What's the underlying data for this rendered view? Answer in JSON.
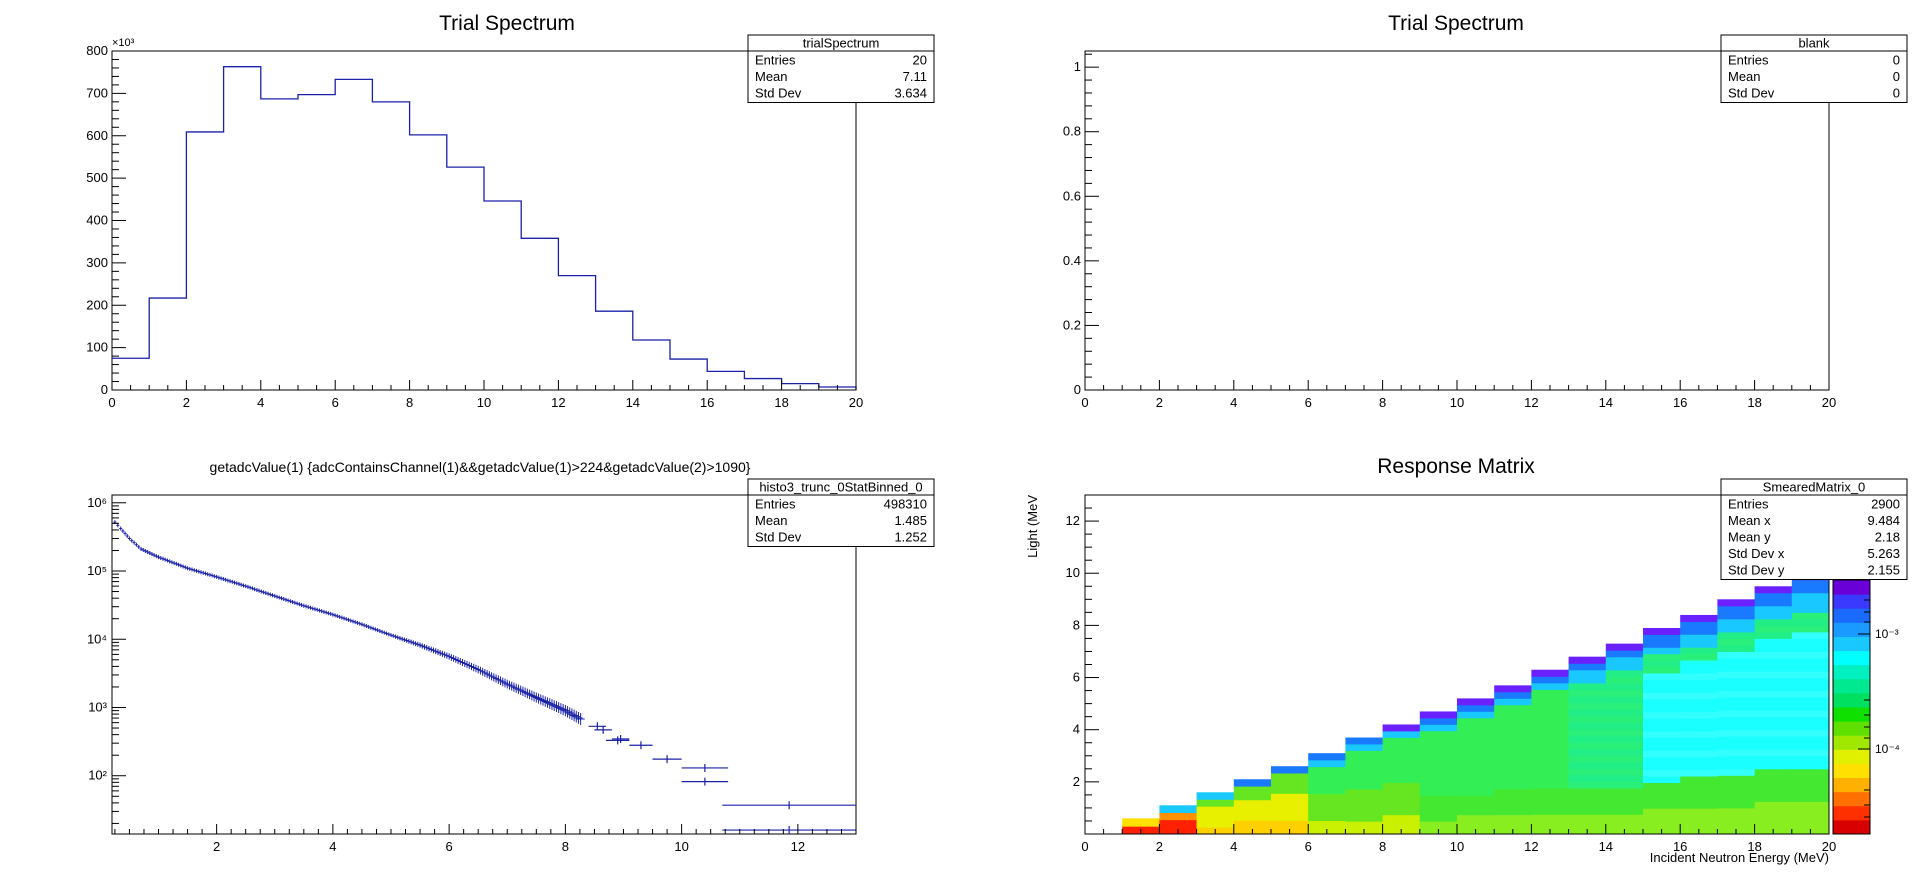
{
  "chart_data": [
    {
      "type": "bar",
      "title": "Trial Spectrum",
      "stats": {
        "name": "trialSpectrum",
        "rows": [
          [
            "Entries",
            "20"
          ],
          [
            "Mean",
            "7.11"
          ],
          [
            "Std Dev",
            "3.634"
          ]
        ]
      },
      "xlim": [
        0,
        20
      ],
      "ylim": [
        0,
        800
      ],
      "y_multiplier_label": "×10³",
      "x_ticks": [
        0,
        2,
        4,
        6,
        8,
        10,
        12,
        14,
        16,
        18,
        20
      ],
      "y_ticks": [
        0,
        100,
        200,
        300,
        400,
        500,
        600,
        700,
        800
      ],
      "bin_edges": [
        0,
        1,
        2,
        3,
        4,
        5,
        6,
        7,
        8,
        9,
        10,
        11,
        12,
        13,
        14,
        15,
        16,
        17,
        18,
        19,
        20
      ],
      "values": [
        75,
        217,
        609,
        763,
        687,
        697,
        733,
        680,
        602,
        526,
        446,
        358,
        270,
        186,
        118,
        73,
        44,
        27,
        15,
        7
      ],
      "color": "#1a22a8"
    },
    {
      "type": "line",
      "title": "Trial Spectrum",
      "stats": {
        "name": "blank",
        "rows": [
          [
            "Entries",
            "0"
          ],
          [
            "Mean",
            "0"
          ],
          [
            "Std Dev",
            "0"
          ]
        ]
      },
      "xlim": [
        0,
        20
      ],
      "ylim": [
        0,
        1.05
      ],
      "x_ticks": [
        0,
        2,
        4,
        6,
        8,
        10,
        12,
        14,
        16,
        18,
        20
      ],
      "y_ticks": [
        0,
        0.2,
        0.4,
        0.6,
        0.8,
        1
      ],
      "values": []
    },
    {
      "type": "scatter",
      "title": "getadcValue(1) {adcContainsChannel(1)&&getadcValue(1)>224&getadcValue(2)>1090}",
      "stats": {
        "name": "histo3_trunc_0StatBinned_0",
        "rows": [
          [
            "Entries",
            "498310"
          ],
          [
            "Mean",
            "1.485"
          ],
          [
            "Std Dev",
            "1.252"
          ]
        ]
      },
      "xlim": [
        0.2,
        13
      ],
      "ylim": [
        14,
        1300000
      ],
      "y_scale": "log",
      "x_ticks": [
        2,
        4,
        6,
        8,
        10,
        12
      ],
      "y_ticks": [
        100,
        1000,
        10000,
        100000,
        1000000
      ],
      "y_tick_labels": [
        "10²",
        "10³",
        "10⁴",
        "10⁵",
        "10⁶"
      ],
      "points": [
        {
          "x0": 10.7,
          "x1": 13,
          "y": 37
        },
        {
          "x0": 10.7,
          "x1": 13,
          "y": 16
        },
        {
          "x0": 10.0,
          "x1": 10.8,
          "y": 130
        },
        {
          "x0": 10.0,
          "x1": 10.8,
          "y": 82
        },
        {
          "x0": 9.5,
          "x1": 10.0,
          "y": 175
        },
        {
          "x0": 9.1,
          "x1": 9.5,
          "y": 280
        },
        {
          "x0": 8.8,
          "x1": 9.1,
          "y": 345
        },
        {
          "x0": 8.7,
          "x1": 9.1,
          "y": 330
        },
        {
          "x0": 8.5,
          "x1": 8.8,
          "y": 470
        },
        {
          "x0": 8.4,
          "x1": 8.7,
          "y": 530
        }
      ],
      "curve": [
        [
          0.25,
          520000
        ],
        [
          0.35,
          420000
        ],
        [
          0.5,
          300000
        ],
        [
          0.7,
          210000
        ],
        [
          1.0,
          160000
        ],
        [
          1.5,
          110000
        ],
        [
          2.0,
          82000
        ],
        [
          2.5,
          60000
        ],
        [
          3.0,
          43000
        ],
        [
          3.5,
          31000
        ],
        [
          4.0,
          23000
        ],
        [
          4.5,
          16500
        ],
        [
          5.0,
          11500
        ],
        [
          5.5,
          8200
        ],
        [
          6.0,
          5600
        ],
        [
          6.5,
          3600
        ],
        [
          7.0,
          2200
        ],
        [
          7.5,
          1400
        ],
        [
          8.0,
          900
        ],
        [
          8.3,
          650
        ]
      ],
      "color": "#1a22a8"
    },
    {
      "type": "heatmap",
      "title": "Response Matrix",
      "xlabel": "Incident Neutron Energy (MeV)",
      "ylabel": "Light (MeV",
      "stats": {
        "name": "SmearedMatrix_0",
        "rows": [
          [
            "Entries",
            "2900"
          ],
          [
            "Mean x",
            "9.484"
          ],
          [
            "Mean y",
            "2.18"
          ],
          [
            "Std Dev x",
            "5.263"
          ],
          [
            "Std Dev y",
            "2.155"
          ]
        ]
      },
      "xlim": [
        0,
        20
      ],
      "ylim": [
        0,
        13
      ],
      "x_ticks": [
        0,
        2,
        4,
        6,
        8,
        10,
        12,
        14,
        16,
        18,
        20
      ],
      "y_ticks": [
        2,
        4,
        6,
        8,
        10,
        12
      ],
      "palette_tick_labels": [
        "10⁻³",
        "10⁻⁴"
      ],
      "palette_cut_label": "²",
      "columns_top_light": [
        0,
        0.6,
        1.1,
        1.6,
        2.1,
        2.6,
        3.1,
        3.7,
        4.2,
        4.7,
        5.2,
        5.7,
        6.3,
        6.8,
        7.3,
        7.9,
        8.4,
        9.0,
        9.5,
        10.0
      ]
    }
  ]
}
